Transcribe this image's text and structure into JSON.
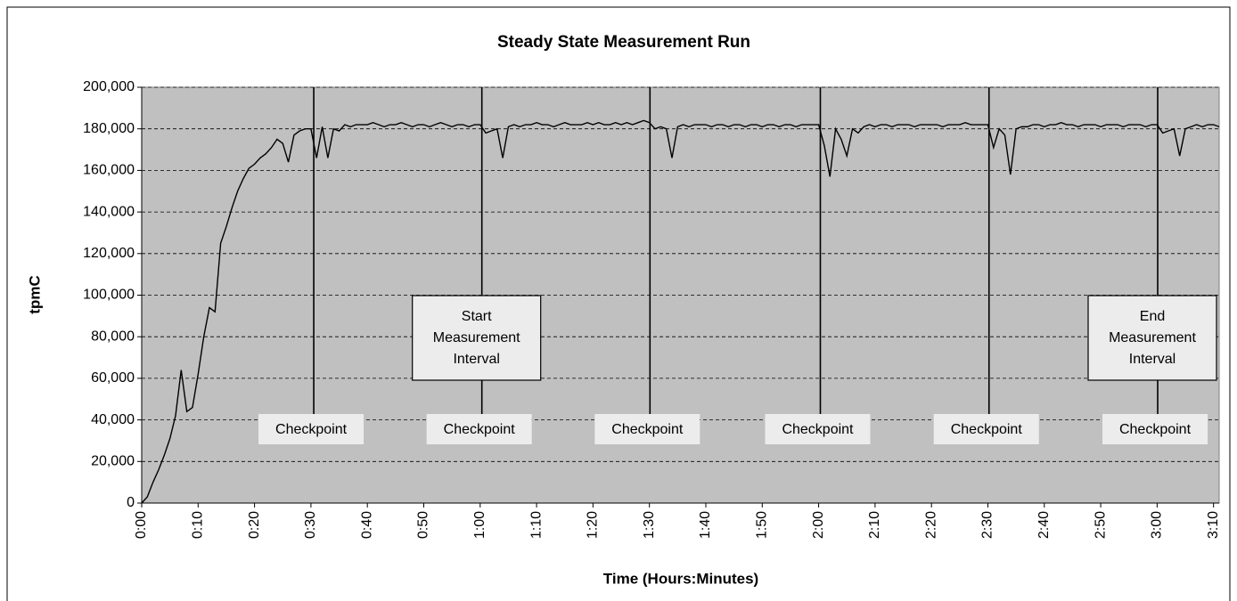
{
  "chart_data": {
    "type": "line",
    "title": "Steady State Measurement Run",
    "xlabel": "Time (Hours:Minutes)",
    "ylabel": "tpmC",
    "xlim": [
      0,
      191
    ],
    "ylim": [
      0,
      200000
    ],
    "grid": true,
    "xticks": [
      {
        "value": 0,
        "label": "0:00"
      },
      {
        "value": 10,
        "label": "0:10"
      },
      {
        "value": 20,
        "label": "0:20"
      },
      {
        "value": 30,
        "label": "0:30"
      },
      {
        "value": 40,
        "label": "0:40"
      },
      {
        "value": 50,
        "label": "0:50"
      },
      {
        "value": 60,
        "label": "1:00"
      },
      {
        "value": 70,
        "label": "1:10"
      },
      {
        "value": 80,
        "label": "1:20"
      },
      {
        "value": 90,
        "label": "1:30"
      },
      {
        "value": 100,
        "label": "1:40"
      },
      {
        "value": 110,
        "label": "1:50"
      },
      {
        "value": 120,
        "label": "2:00"
      },
      {
        "value": 130,
        "label": "2:10"
      },
      {
        "value": 140,
        "label": "2:20"
      },
      {
        "value": 150,
        "label": "2:30"
      },
      {
        "value": 160,
        "label": "2:40"
      },
      {
        "value": 170,
        "label": "2:50"
      },
      {
        "value": 180,
        "label": "3:00"
      },
      {
        "value": 190,
        "label": "3:10"
      }
    ],
    "yticks": [
      0,
      {
        "value": 20000,
        "label": "20,000"
      },
      {
        "value": 40000,
        "label": "40,000"
      },
      {
        "value": 60000,
        "label": "60,000"
      },
      {
        "value": 80000,
        "label": "80,000"
      },
      {
        "value": 100000,
        "label": "100,000"
      },
      {
        "value": 120000,
        "label": "120,000"
      },
      {
        "value": 140000,
        "label": "140,000"
      },
      {
        "value": 160000,
        "label": "160,000"
      },
      {
        "value": 180000,
        "label": "180,000"
      },
      {
        "value": 200000,
        "label": "200,000"
      }
    ],
    "x": [
      0,
      1,
      2,
      3,
      4,
      5,
      6,
      7,
      8,
      9,
      10,
      11,
      12,
      13,
      14,
      15,
      16,
      17,
      18,
      19,
      20,
      21,
      22,
      23,
      24,
      25,
      26,
      27,
      28,
      29,
      30,
      31,
      32,
      33,
      34,
      35,
      36,
      37,
      38,
      39,
      40,
      41,
      42,
      43,
      44,
      45,
      46,
      47,
      48,
      49,
      50,
      51,
      52,
      53,
      54,
      55,
      56,
      57,
      58,
      59,
      60,
      61,
      62,
      63,
      64,
      65,
      66,
      67,
      68,
      69,
      70,
      71,
      72,
      73,
      74,
      75,
      76,
      77,
      78,
      79,
      80,
      81,
      82,
      83,
      84,
      85,
      86,
      87,
      88,
      89,
      90,
      91,
      92,
      93,
      94,
      95,
      96,
      97,
      98,
      99,
      100,
      101,
      102,
      103,
      104,
      105,
      106,
      107,
      108,
      109,
      110,
      111,
      112,
      113,
      114,
      115,
      116,
      117,
      118,
      119,
      120,
      121,
      122,
      123,
      124,
      125,
      126,
      127,
      128,
      129,
      130,
      131,
      132,
      133,
      134,
      135,
      136,
      137,
      138,
      139,
      140,
      141,
      142,
      143,
      144,
      145,
      146,
      147,
      148,
      149,
      150,
      151,
      152,
      153,
      154,
      155,
      156,
      157,
      158,
      159,
      160,
      161,
      162,
      163,
      164,
      165,
      166,
      167,
      168,
      169,
      170,
      171,
      172,
      173,
      174,
      175,
      176,
      177,
      178,
      179,
      180,
      181,
      182,
      183,
      184,
      185,
      186,
      187,
      188,
      189,
      190,
      191
    ],
    "series": [
      {
        "color": "#000000",
        "values": [
          0,
          3000,
          10000,
          16000,
          23000,
          31000,
          42000,
          64000,
          44000,
          46000,
          62000,
          80000,
          94000,
          92000,
          125000,
          133000,
          142000,
          150000,
          156000,
          161000,
          163000,
          166000,
          168000,
          171000,
          175000,
          173000,
          164000,
          177000,
          179000,
          180000,
          180000,
          166000,
          181000,
          166000,
          180000,
          179000,
          182000,
          181000,
          182000,
          182000,
          182000,
          183000,
          182000,
          181000,
          182000,
          182000,
          183000,
          182000,
          181000,
          182000,
          182000,
          181000,
          182000,
          183000,
          182000,
          181000,
          182000,
          182000,
          181000,
          182000,
          182000,
          178000,
          179000,
          180000,
          166000,
          181000,
          182000,
          181000,
          182000,
          182000,
          183000,
          182000,
          182000,
          181000,
          182000,
          183000,
          182000,
          182000,
          182000,
          183000,
          182000,
          183000,
          182000,
          182000,
          183000,
          182000,
          183000,
          182000,
          183000,
          184000,
          183000,
          180000,
          181000,
          180000,
          166000,
          181000,
          182000,
          181000,
          182000,
          182000,
          182000,
          181000,
          182000,
          182000,
          181000,
          182000,
          182000,
          181000,
          182000,
          182000,
          181000,
          182000,
          182000,
          181000,
          182000,
          182000,
          181000,
          182000,
          182000,
          182000,
          182000,
          172000,
          157000,
          180000,
          175000,
          167000,
          180000,
          178000,
          181000,
          182000,
          181000,
          182000,
          182000,
          181000,
          182000,
          182000,
          182000,
          181000,
          182000,
          182000,
          182000,
          182000,
          181000,
          182000,
          182000,
          182000,
          183000,
          182000,
          182000,
          182000,
          182000,
          171000,
          180000,
          177000,
          158000,
          180000,
          181000,
          181000,
          182000,
          182000,
          181000,
          182000,
          182000,
          183000,
          182000,
          182000,
          181000,
          182000,
          182000,
          182000,
          181000,
          182000,
          182000,
          182000,
          181000,
          182000,
          182000,
          182000,
          181000,
          182000,
          182000,
          178000,
          179000,
          180000,
          167000,
          180000,
          181000,
          182000,
          181000,
          182000,
          182000,
          181000
        ]
      }
    ],
    "checkpoints": [
      {
        "x": 30.5,
        "label": "Checkpoint"
      },
      {
        "x": 60.3,
        "label": "Checkpoint"
      },
      {
        "x": 90.1,
        "label": "Checkpoint"
      },
      {
        "x": 120.3,
        "label": "Checkpoint"
      },
      {
        "x": 150.2,
        "label": "Checkpoint"
      },
      {
        "x": 180.1,
        "label": "Checkpoint"
      }
    ],
    "annotations": [
      {
        "x": 60.3,
        "lines": [
          "Start",
          "Measurement",
          "Interval"
        ]
      },
      {
        "x": 180.1,
        "lines": [
          "End",
          "Measurement",
          "Interval"
        ]
      }
    ]
  }
}
